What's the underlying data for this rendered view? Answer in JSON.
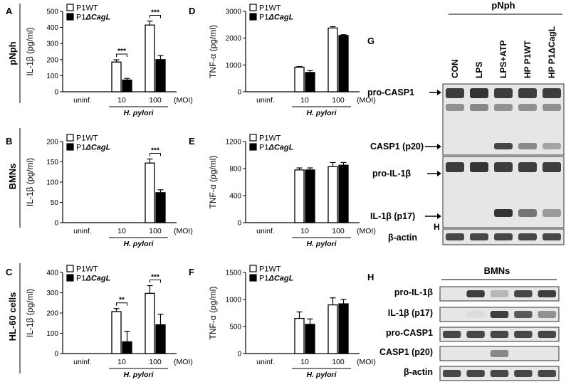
{
  "row_labels": [
    "pNph",
    "BMNs",
    "HL-60 cells"
  ],
  "legend": {
    "wt": "P1WT",
    "mut_prefix": "P1",
    "mut_suffix": "ΔCagL"
  },
  "x_group_label": "H. pylori",
  "x_unit": "(MOI)",
  "colors": {
    "wt": "#ffffff",
    "mut": "#000000",
    "stroke": "#000000",
    "blot_bg": "#e6e6e6",
    "band": "#2a2a2a"
  },
  "chart_data": [
    {
      "id": "A",
      "type": "bar",
      "ylabel": "IL-1β (pg/ml)",
      "ylim": [
        0,
        500
      ],
      "yticks": [
        0,
        100,
        200,
        300,
        400,
        500
      ],
      "categories": [
        "uninf.",
        "10",
        "100"
      ],
      "series": [
        {
          "name": "P1WT",
          "values": [
            0,
            185,
            415
          ],
          "errors": [
            0,
            14,
            25
          ]
        },
        {
          "name": "P1ΔCagL",
          "values": [
            0,
            73,
            200
          ],
          "errors": [
            0,
            10,
            25
          ]
        }
      ],
      "significance": [
        {
          "category": "10",
          "label": "***"
        },
        {
          "category": "100",
          "label": "***"
        }
      ]
    },
    {
      "id": "B",
      "type": "bar",
      "ylabel": "IL-1β (pg/ml)",
      "ylim": [
        0,
        200
      ],
      "yticks": [
        0,
        50,
        100,
        150,
        200
      ],
      "categories": [
        "uninf.",
        "10",
        "100"
      ],
      "series": [
        {
          "name": "P1WT",
          "values": [
            0,
            0,
            147
          ],
          "errors": [
            0,
            0,
            10
          ]
        },
        {
          "name": "P1ΔCagL",
          "values": [
            0,
            0,
            74
          ],
          "errors": [
            0,
            0,
            7
          ]
        }
      ],
      "significance": [
        {
          "category": "100",
          "label": "***"
        }
      ]
    },
    {
      "id": "C",
      "type": "bar",
      "ylabel": "IL-1β (pg/ml)",
      "ylim": [
        0,
        400
      ],
      "yticks": [
        0,
        100,
        200,
        300,
        400
      ],
      "categories": [
        "uninf.",
        "10",
        "100"
      ],
      "series": [
        {
          "name": "P1WT",
          "values": [
            0,
            207,
            297
          ],
          "errors": [
            0,
            15,
            38
          ]
        },
        {
          "name": "P1ΔCagL",
          "values": [
            0,
            58,
            142
          ],
          "errors": [
            0,
            52,
            52
          ]
        }
      ],
      "significance": [
        {
          "category": "10",
          "label": "**"
        },
        {
          "category": "100",
          "label": "***"
        }
      ]
    },
    {
      "id": "D",
      "type": "bar",
      "ylabel": "TNF-α (pg/ml)",
      "ylim": [
        0,
        3000
      ],
      "yticks": [
        0,
        1000,
        2000,
        3000
      ],
      "categories": [
        "uninf.",
        "10",
        "100"
      ],
      "series": [
        {
          "name": "P1WT",
          "values": [
            0,
            920,
            2380
          ],
          "errors": [
            0,
            20,
            50
          ]
        },
        {
          "name": "P1ΔCagL",
          "values": [
            0,
            720,
            2100
          ],
          "errors": [
            0,
            70,
            30
          ]
        }
      ],
      "significance": []
    },
    {
      "id": "E",
      "type": "bar",
      "ylabel": "TNF-α (pg/ml)",
      "ylim": [
        0,
        1200
      ],
      "yticks": [
        0,
        400,
        800,
        1200
      ],
      "categories": [
        "uninf.",
        "10",
        "100"
      ],
      "series": [
        {
          "name": "P1WT",
          "values": [
            0,
            780,
            830
          ],
          "errors": [
            0,
            30,
            60
          ]
        },
        {
          "name": "P1ΔCagL",
          "values": [
            0,
            780,
            850
          ],
          "errors": [
            0,
            30,
            40
          ]
        }
      ],
      "significance": []
    },
    {
      "id": "F",
      "type": "bar",
      "ylabel": "TNF-α (pg/ml)",
      "ylim": [
        0,
        1500
      ],
      "yticks": [
        0,
        500,
        1000,
        1500
      ],
      "categories": [
        "uninf.",
        "10",
        "100"
      ],
      "series": [
        {
          "name": "P1WT",
          "values": [
            0,
            650,
            900
          ],
          "errors": [
            0,
            120,
            130
          ]
        },
        {
          "name": "P1ΔCagL",
          "values": [
            0,
            540,
            920
          ],
          "errors": [
            0,
            100,
            80
          ]
        }
      ],
      "significance": []
    }
  ],
  "blot_G": {
    "panel_label": "G",
    "header": "pNph",
    "lanes": [
      "CON",
      "LPS",
      "LPS+ATP",
      "HP P1WT",
      "HP P1ΔCagL"
    ],
    "band_labels": [
      "pro-CASP1",
      "CASP1 (p20)",
      "pro-IL-1β",
      "IL-1β (p17)",
      "β-actin"
    ],
    "extra_label": "H",
    "intensities": {
      "pro_casp1": [
        0.9,
        0.95,
        0.9,
        0.9,
        0.9
      ],
      "casp1_p20": [
        0.0,
        0.0,
        0.85,
        0.5,
        0.35
      ],
      "pro_il1b": [
        0.9,
        0.95,
        0.9,
        0.9,
        0.9
      ],
      "il1b_p17": [
        0.0,
        0.0,
        0.95,
        0.6,
        0.4
      ],
      "actin": [
        0.85,
        0.85,
        0.85,
        0.85,
        0.85
      ]
    }
  },
  "blot_H": {
    "panel_label": "H",
    "header": "BMNs",
    "band_labels": [
      "pro-IL-1β",
      "IL-1β (p17)",
      "pro-CASP1",
      "CASP1 (p20)",
      "β-actin"
    ],
    "intensities": [
      [
        0.0,
        0.9,
        0.25,
        0.85,
        0.9
      ],
      [
        0.0,
        0.05,
        0.9,
        0.75,
        0.45
      ],
      [
        0.85,
        0.85,
        0.85,
        0.85,
        0.85
      ],
      [
        0.0,
        0.0,
        0.5,
        0.0,
        0.0
      ],
      [
        0.85,
        0.85,
        0.85,
        0.85,
        0.85
      ]
    ]
  }
}
